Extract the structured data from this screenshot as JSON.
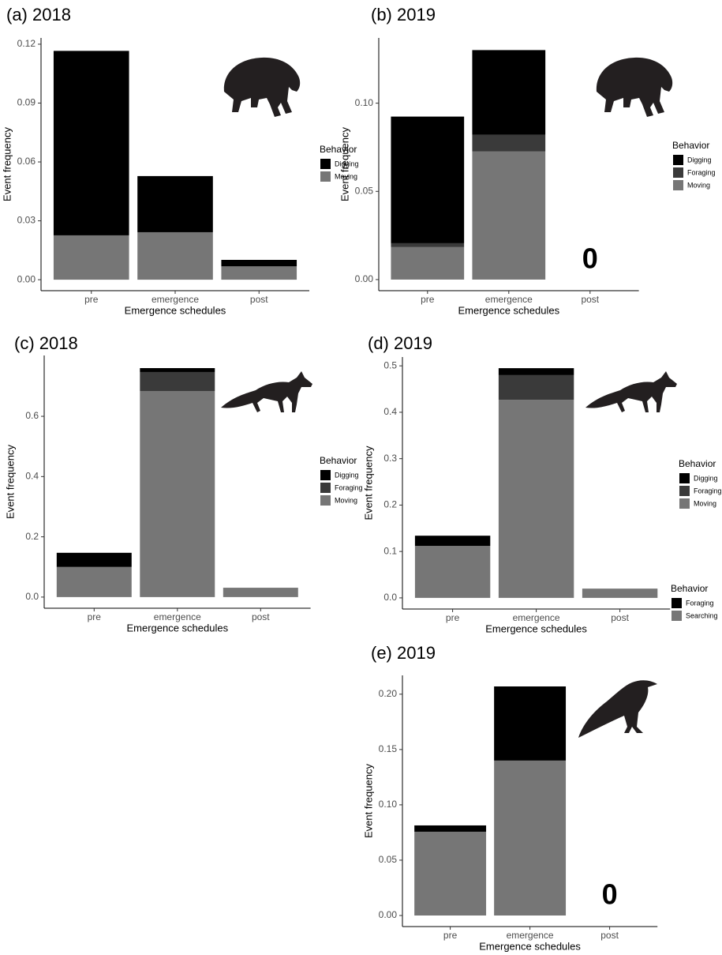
{
  "chart_data": [
    {
      "type": "bar",
      "stacked": true,
      "title": "(a) 2018",
      "xlabel": "Emergence schedules",
      "ylabel": "Event frequency",
      "legend_title": "Behavior",
      "categories": [
        "pre",
        "emergence",
        "post"
      ],
      "series": [
        {
          "name": "Digging",
          "color": "#000000",
          "values": [
            0.094,
            0.0286,
            0.0033
          ]
        },
        {
          "name": "Moving",
          "color": "#767676",
          "values": [
            0.0226,
            0.0242,
            0.0068
          ]
        }
      ],
      "ylim": [
        -0.0056,
        0.1232
      ],
      "yticks": [
        {
          "value": 0,
          "label": "0.00"
        },
        0.03,
        0.06,
        0.09,
        0.12
      ]
    },
    {
      "type": "bar",
      "stacked": true,
      "title": "(b) 2019",
      "xlabel": "Emergence schedules",
      "ylabel": "Event frequency",
      "legend_title": "Behavior",
      "categories": [
        "pre",
        "emergence",
        "post"
      ],
      "series": [
        {
          "name": "Digging",
          "color": "#000000",
          "values": [
            0.0718,
            0.048,
            0
          ]
        },
        {
          "name": "Foraging",
          "color": "#3a3a3a",
          "values": [
            0.0022,
            0.0095,
            0
          ]
        },
        {
          "name": "Moving",
          "color": "#767676",
          "values": [
            0.0184,
            0.0726,
            0
          ]
        }
      ],
      "annotation": "0",
      "ylim": [
        -0.0063,
        0.137
      ],
      "yticks": [
        {
          "value": 0,
          "label": "0.00"
        },
        0.05,
        {
          "value": 0.1,
          "label": "0.10"
        }
      ]
    },
    {
      "type": "bar",
      "stacked": true,
      "title": "(c) 2018",
      "xlabel": "Emergence schedules",
      "ylabel": "Event frequency",
      "legend_title": "Behavior",
      "categories": [
        "pre",
        "emergence",
        "post"
      ],
      "series": [
        {
          "name": "Digging",
          "color": "#000000",
          "values": [
            0.047,
            0.013,
            0
          ]
        },
        {
          "name": "Foraging",
          "color": "#3a3a3a",
          "values": [
            0,
            0.063,
            0
          ]
        },
        {
          "name": "Moving",
          "color": "#767676",
          "values": [
            0.1,
            0.684,
            0.031
          ]
        }
      ],
      "ylim": [
        -0.037,
        0.802
      ],
      "yticks": [
        {
          "value": 0,
          "label": "0.0"
        },
        0.2,
        0.4,
        0.6
      ]
    },
    {
      "type": "bar",
      "stacked": true,
      "title": "(d) 2019",
      "xlabel": "Emergence schedules",
      "ylabel": "Event frequency",
      "legend_title": "Behavior",
      "categories": [
        "pre",
        "emergence",
        "post"
      ],
      "series": [
        {
          "name": "Digging",
          "color": "#000000",
          "values": [
            0.022,
            0.015,
            0
          ]
        },
        {
          "name": "Foraging",
          "color": "#3a3a3a",
          "values": [
            0,
            0.053,
            0
          ]
        },
        {
          "name": "Moving",
          "color": "#767676",
          "values": [
            0.112,
            0.427,
            0.02
          ]
        }
      ],
      "ylim": [
        -0.024,
        0.519
      ],
      "yticks": [
        {
          "value": 0,
          "label": "0.0"
        },
        0.1,
        0.2,
        0.3,
        0.4,
        0.5
      ]
    },
    {
      "type": "bar",
      "stacked": true,
      "title": "(e) 2019",
      "xlabel": "Emergence schedules",
      "ylabel": "Event frequency",
      "legend_title": "Behavior",
      "categories": [
        "pre",
        "emergence",
        "post"
      ],
      "series": [
        {
          "name": "Foraging",
          "color": "#000000",
          "values": [
            0.0057,
            0.067,
            0
          ]
        },
        {
          "name": "Searching",
          "color": "#767676",
          "values": [
            0.0757,
            0.14,
            0
          ]
        }
      ],
      "annotation": "0",
      "ylim": [
        -0.01,
        0.217
      ],
      "yticks": [
        {
          "value": 0,
          "label": "0.00"
        },
        0.05,
        {
          "value": 0.1,
          "label": "0.10"
        },
        0.15,
        {
          "value": 0.2,
          "label": "0.20"
        }
      ]
    }
  ]
}
